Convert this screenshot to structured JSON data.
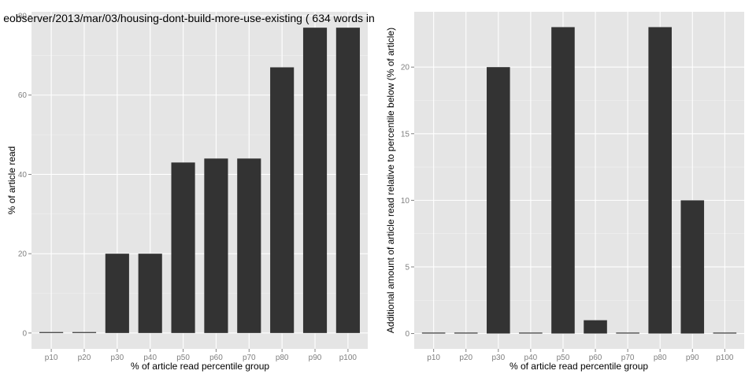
{
  "chart_data": [
    {
      "type": "bar",
      "title": "eobserver/2013/mar/03/housing-dont-build-more-use-existing ( 634 words in",
      "xlabel": "% of article read percentile group",
      "ylabel": "% of article read",
      "categories": [
        "p10",
        "p20",
        "p30",
        "p40",
        "p50",
        "p60",
        "p70",
        "p80",
        "p90",
        "p100"
      ],
      "values": [
        0,
        0,
        20,
        20,
        43,
        44,
        44,
        67,
        77,
        77
      ],
      "ylim": [
        -4,
        81
      ],
      "yticks": [
        0,
        20,
        40,
        60,
        80
      ],
      "grid": true,
      "bar_color": "#333333",
      "panel_color": "#e5e5e5"
    },
    {
      "type": "bar",
      "title": "",
      "xlabel": "% of article read percentile group",
      "ylabel": "Additional amount of article read relative to percentile below (% of article)",
      "categories": [
        "p10",
        "p20",
        "p30",
        "p40",
        "p50",
        "p60",
        "p70",
        "p80",
        "p90",
        "p100"
      ],
      "values": [
        0,
        0,
        20,
        0,
        23,
        1,
        0,
        23,
        10,
        0
      ],
      "ylim": [
        -1.15,
        24.15
      ],
      "yticks": [
        0,
        5,
        10,
        15,
        20
      ],
      "grid": true,
      "bar_color": "#333333",
      "panel_color": "#e5e5e5"
    }
  ]
}
